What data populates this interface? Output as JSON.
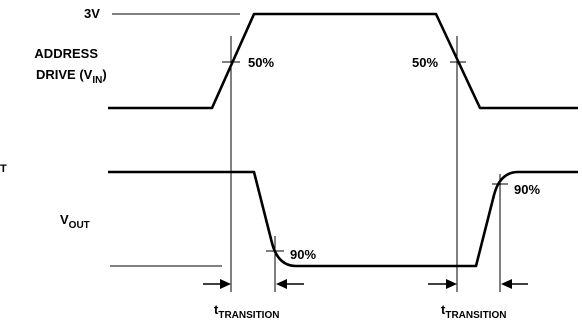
{
  "labels": {
    "level_3v": "3V",
    "address_drive_line1": "ADDRESS",
    "address_drive_line2": "DRIVE (V",
    "address_drive_sub": "IN",
    "address_drive_close": ")",
    "vout_main": "V",
    "vout_sub": "OUT",
    "edge_fragment": "T",
    "pct50_left": "50%",
    "pct50_right": "50%",
    "pct90_left": "90%",
    "pct90_right": "90%",
    "t_left_main": "t",
    "t_left_sub": "TRANSITION",
    "t_right_main": "t",
    "t_right_sub": "TRANSITION"
  }
}
